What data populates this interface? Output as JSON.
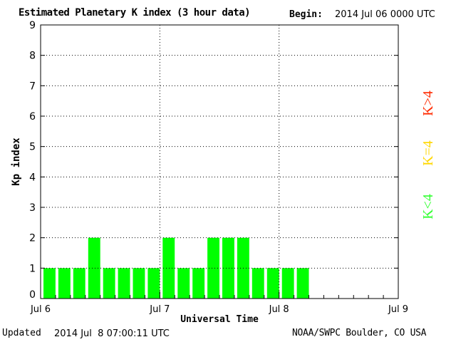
{
  "header": {
    "title": "Estimated Planetary K index (3 hour data)",
    "begin_label": "Begin:",
    "begin_value": "2014 Jul 06 0000 UTC"
  },
  "footer": {
    "updated_label": "Updated",
    "updated_value": "2014 Jul  8 07:00:11 UTC",
    "credit": "NOAA/SWPC Boulder, CO USA"
  },
  "legend": [
    {
      "label": "K>4",
      "color": "#ff2a00"
    },
    {
      "label": "K=4",
      "color": "#ffd700"
    },
    {
      "label": "K<4",
      "color": "#33ff33"
    }
  ],
  "chart_data": {
    "type": "bar",
    "title": "Estimated Planetary K index (3 hour data)",
    "xlabel": "Universal Time",
    "ylabel": "Kp index",
    "ylim": [
      0,
      9
    ],
    "yticks": [
      "0",
      "1",
      "2",
      "3",
      "4",
      "5",
      "6",
      "7",
      "8",
      "9"
    ],
    "x_tick_labels": [
      "Jul 6",
      "Jul 7",
      "Jul 8",
      "Jul 9"
    ],
    "bars_per_day": 8,
    "bar_color": "#00ff00",
    "grid": "dotted",
    "values": [
      1,
      1,
      1,
      2,
      1,
      1,
      1,
      1,
      2,
      1,
      1,
      2,
      2,
      2,
      1,
      1,
      1,
      1
    ]
  }
}
